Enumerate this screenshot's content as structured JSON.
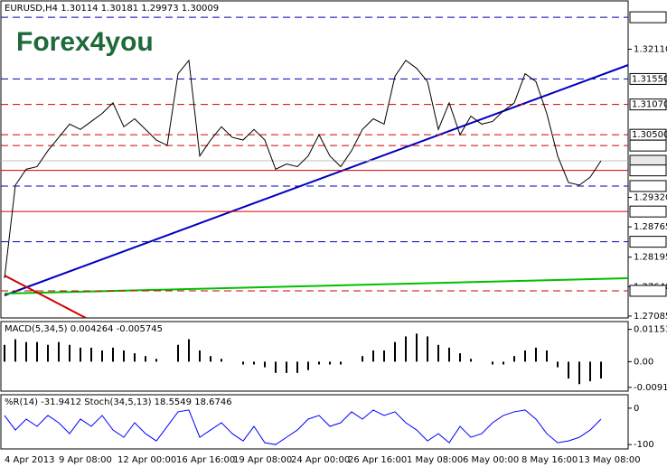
{
  "chart_data": {
    "type": "line",
    "title": "EURUSD,H4  1.30114 1.30181 1.29973 1.30009",
    "logo": "Forex4you",
    "x_labels": [
      "4 Apr 2013",
      "9 Apr 08:00",
      "12 Apr 00:00",
      "16 Apr 16:00",
      "19 Apr 08:00",
      "24 Apr 00:00",
      "26 Apr 16:00",
      "1 May 08:00",
      "6 May 00:00",
      "8 May 16:00",
      "13 May 08:00"
    ],
    "series": [
      {
        "name": "EURUSD",
        "color": "#000000",
        "values": [
          1.278,
          1.2955,
          1.2985,
          1.299,
          1.302,
          1.3045,
          1.307,
          1.306,
          1.3075,
          1.309,
          1.311,
          1.3065,
          1.308,
          1.306,
          1.304,
          1.303,
          1.3165,
          1.319,
          1.301,
          1.304,
          1.3065,
          1.3045,
          1.304,
          1.306,
          1.304,
          1.2985,
          1.2995,
          1.299,
          1.301,
          1.305,
          1.301,
          1.299,
          1.302,
          1.306,
          1.308,
          1.307,
          1.316,
          1.319,
          1.3175,
          1.315,
          1.306,
          1.311,
          1.305,
          1.3085,
          1.307,
          1.3075,
          1.3095,
          1.311,
          1.3165,
          1.315,
          1.309,
          1.301,
          1.296,
          1.2955,
          1.297,
          1.3001
        ]
      }
    ],
    "ylim": [
      1.2705,
      1.3302
    ],
    "yticks": [
      {
        "value": 1.3211,
        "label": "1.32110"
      },
      {
        "value": 1.2932,
        "label": "1.29320"
      },
      1.28765,
      1.28195,
      {
        "value": 1.2764,
        "label": "1.27640"
      },
      1.27085
    ],
    "levels": [
      {
        "value": 1.32712,
        "color": "#0000c0",
        "style": "dashed"
      },
      {
        "value": 1.3155,
        "label": "1.31550",
        "color": "#0000c0",
        "style": "dashed"
      },
      {
        "value": 1.3107,
        "label": "1.31070",
        "color": "#d00000",
        "style": "dashed"
      },
      {
        "value": 1.305,
        "label": "1.30500",
        "color": "#d00000",
        "style": "dashed"
      },
      {
        "value": 1.30296,
        "color": "#d00000",
        "style": "dashed"
      },
      {
        "value": 1.30009,
        "color": "#c0c0c0",
        "style": "solid"
      },
      {
        "value": 1.29828,
        "color": "#d00000",
        "style": "solid"
      },
      {
        "value": 1.29534,
        "color": "#0000c0",
        "style": "dashed"
      },
      {
        "value": 1.29054,
        "color": "#d00000",
        "style": "solid"
      },
      {
        "value": 1.28485,
        "color": "#0000c0",
        "style": "dashed"
      },
      {
        "value": 1.27561,
        "color": "#d00000",
        "style": "dashed"
      }
    ],
    "macd": {
      "title": "MACD(5,34,5) 0.004264 -0.005745",
      "color": "#000000",
      "values": [
        0.006,
        0.008,
        0.007,
        0.007,
        0.006,
        0.007,
        0.006,
        0.005,
        0.005,
        0.004,
        0.005,
        0.004,
        0.003,
        0.002,
        0.001,
        0.0,
        0.006,
        0.008,
        0.004,
        0.002,
        0.001,
        0.0,
        -0.001,
        -0.001,
        -0.002,
        -0.004,
        -0.004,
        -0.004,
        -0.003,
        -0.001,
        -0.001,
        -0.001,
        0.0,
        0.002,
        0.004,
        0.004,
        0.007,
        0.009,
        0.01,
        0.009,
        0.006,
        0.005,
        0.003,
        0.001,
        0.0,
        -0.001,
        -0.001,
        0.002,
        0.004,
        0.005,
        0.004,
        -0.002,
        -0.006,
        -0.008,
        -0.007,
        -0.006
      ],
      "ylim": [
        -0.0105,
        0.0143
      ],
      "yticks": [
        0.01153,
        {
          "value": 0,
          "label": "0.00"
        },
        -0.00917
      ]
    },
    "osc": {
      "title": "%R(14) -31.9412 Stoch(34,5,13) 18.5549 18.6746",
      "color": "#0000ff",
      "values": [
        -20,
        -60,
        -30,
        -50,
        -20,
        -40,
        -70,
        -30,
        -50,
        -20,
        -60,
        -80,
        -40,
        -70,
        -90,
        -50,
        -10,
        -5,
        -80,
        -60,
        -40,
        -70,
        -90,
        -50,
        -95,
        -100,
        -80,
        -60,
        -30,
        -20,
        -50,
        -40,
        -10,
        -30,
        -5,
        -20,
        -10,
        -40,
        -60,
        -90,
        -70,
        -95,
        -50,
        -80,
        -70,
        -40,
        -20,
        -10,
        -5,
        -30,
        -70,
        -95,
        -90,
        -80,
        -60,
        -30
      ],
      "ylim": [
        -112,
        37
      ],
      "yticks": [
        0,
        -100
      ]
    }
  }
}
